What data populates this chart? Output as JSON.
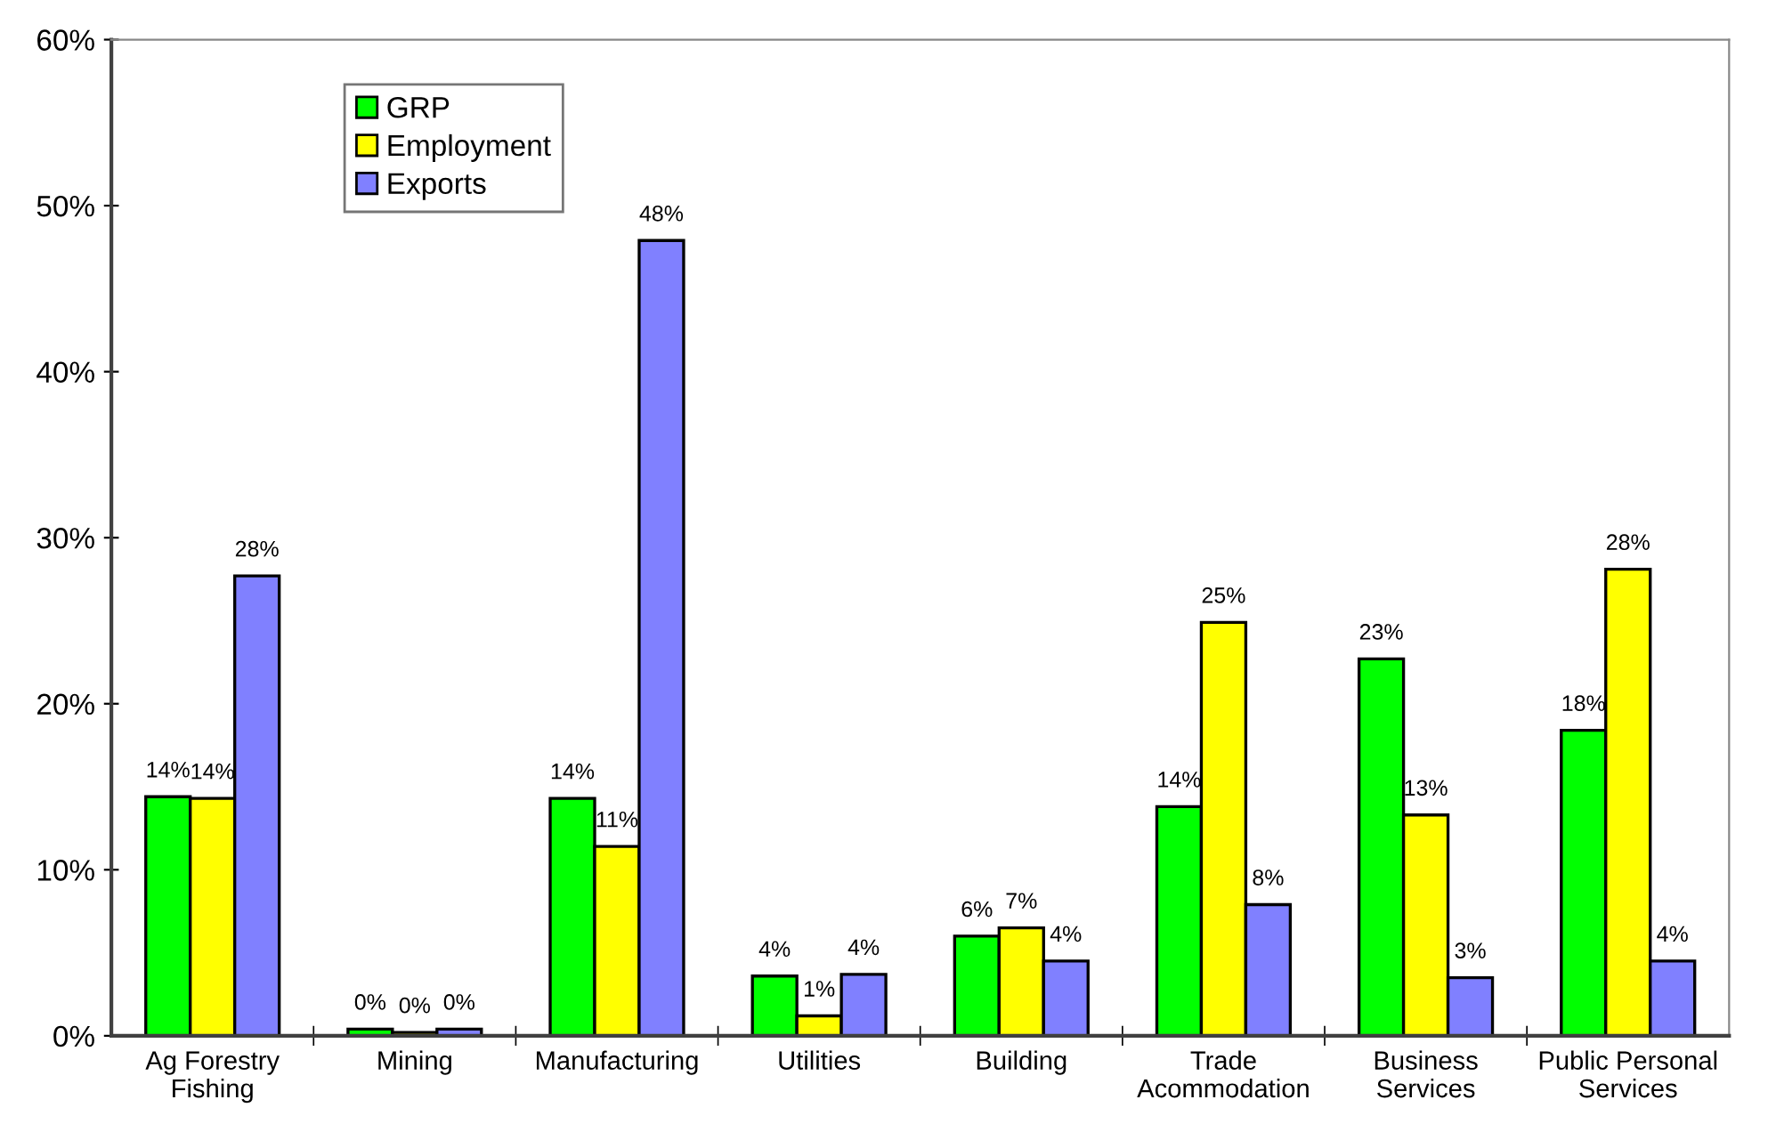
{
  "chart_data": {
    "type": "bar",
    "categories": [
      "Ag Forestry\nFishing",
      "Mining",
      "Manufacturing",
      "Utilities",
      "Building",
      "Trade\nAcommodation",
      "Business\nServices",
      "Public Personal\nServices"
    ],
    "series": [
      {
        "name": "GRP",
        "color": "#00ff00",
        "values": [
          14.4,
          0.4,
          14.3,
          3.6,
          6.0,
          13.8,
          22.7,
          18.4
        ],
        "value_labels": [
          "14%",
          "0%",
          "14%",
          "4%",
          "6%",
          "14%",
          "23%",
          "18%"
        ]
      },
      {
        "name": "Employment",
        "color": "#ffff00",
        "values": [
          14.3,
          0.2,
          11.4,
          1.2,
          6.5,
          24.9,
          13.3,
          28.1
        ],
        "value_labels": [
          "14%",
          "0%",
          "11%",
          "1%",
          "7%",
          "25%",
          "13%",
          "28%"
        ]
      },
      {
        "name": "Exports",
        "color": "#8080ff",
        "values": [
          27.7,
          0.4,
          47.9,
          3.7,
          4.5,
          7.9,
          3.5,
          4.5
        ],
        "value_labels": [
          "28%",
          "0%",
          "48%",
          "4%",
          "4%",
          "8%",
          "3%",
          "4%"
        ]
      }
    ],
    "ylim": [
      0,
      60
    ],
    "yticks": [
      {
        "value": 0,
        "label": "0%"
      },
      {
        "value": 10,
        "label": "10%"
      },
      {
        "value": 20,
        "label": "20%"
      },
      {
        "value": 30,
        "label": "30%"
      },
      {
        "value": 40,
        "label": "40%"
      },
      {
        "value": 50,
        "label": "50%"
      },
      {
        "value": 60,
        "label": "60%"
      }
    ],
    "grid": false,
    "legend": "top left"
  }
}
